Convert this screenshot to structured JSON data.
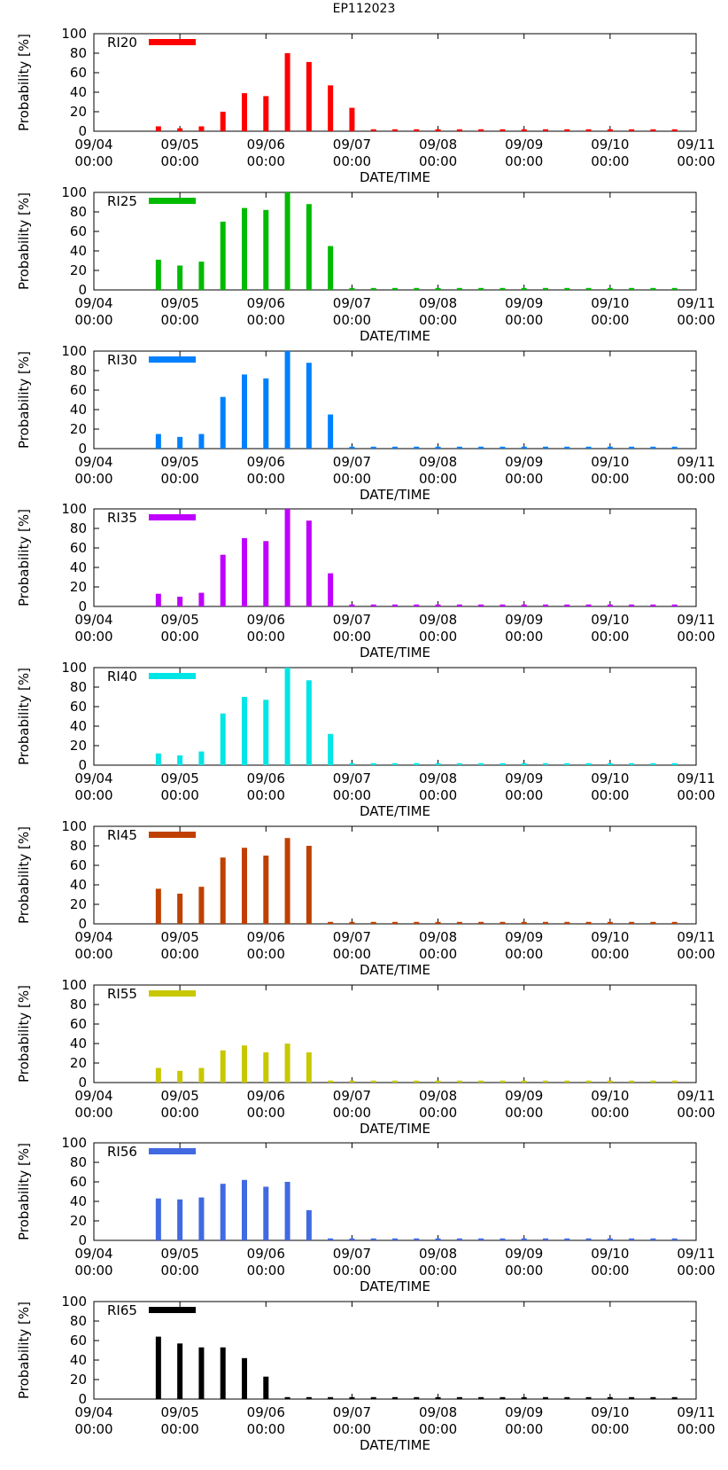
{
  "title": "EP112023",
  "x_tick_labels": [
    [
      "09/04",
      "00:00"
    ],
    [
      "09/05",
      "00:00"
    ],
    [
      "09/06",
      "00:00"
    ],
    [
      "09/07",
      "00:00"
    ],
    [
      "09/08",
      "00:00"
    ],
    [
      "09/09",
      "00:00"
    ],
    [
      "09/10",
      "00:00"
    ],
    [
      "09/11",
      "00:00"
    ]
  ],
  "chart_data": [
    {
      "type": "bar",
      "name": "RI20",
      "color": "#ff0000",
      "ylabel": "Probability [%]",
      "xlabel": "DATE/TIME",
      "ylim": [
        0,
        100
      ],
      "yticks": [
        0,
        20,
        40,
        60,
        80,
        100
      ],
      "x": [
        0.75,
        1.0,
        1.25,
        1.5,
        1.75,
        2.0,
        2.25,
        2.5,
        2.75,
        3.0,
        3.25,
        3.5,
        3.75,
        4.0,
        4.25,
        4.5,
        4.75,
        5.0,
        5.25,
        5.5,
        5.75,
        6.0,
        6.25,
        6.5,
        6.75
      ],
      "values": [
        5,
        3,
        5,
        20,
        39,
        36,
        80,
        71,
        47,
        24,
        2,
        2,
        2,
        2,
        2,
        2,
        2,
        2,
        2,
        2,
        2,
        2,
        2,
        2,
        2
      ]
    },
    {
      "type": "bar",
      "name": "RI25",
      "color": "#00bb00",
      "ylabel": "Probability [%]",
      "xlabel": "DATE/TIME",
      "ylim": [
        0,
        100
      ],
      "yticks": [
        0,
        20,
        40,
        60,
        80,
        100
      ],
      "x": [
        0.75,
        1.0,
        1.25,
        1.5,
        1.75,
        2.0,
        2.25,
        2.5,
        2.75,
        3.0,
        3.25,
        3.5,
        3.75,
        4.0,
        4.25,
        4.5,
        4.75,
        5.0,
        5.25,
        5.5,
        5.75,
        6.0,
        6.25,
        6.5,
        6.75
      ],
      "values": [
        31,
        25,
        29,
        70,
        84,
        82,
        100,
        88,
        45,
        2,
        2,
        2,
        2,
        2,
        2,
        2,
        2,
        2,
        2,
        2,
        2,
        2,
        2,
        2,
        2
      ]
    },
    {
      "type": "bar",
      "name": "RI30",
      "color": "#0080ff",
      "ylabel": "Probability [%]",
      "xlabel": "DATE/TIME",
      "ylim": [
        0,
        100
      ],
      "yticks": [
        0,
        20,
        40,
        60,
        80,
        100
      ],
      "x": [
        0.75,
        1.0,
        1.25,
        1.5,
        1.75,
        2.0,
        2.25,
        2.5,
        2.75,
        3.0,
        3.25,
        3.5,
        3.75,
        4.0,
        4.25,
        4.5,
        4.75,
        5.0,
        5.25,
        5.5,
        5.75,
        6.0,
        6.25,
        6.5,
        6.75
      ],
      "values": [
        15,
        12,
        15,
        53,
        76,
        72,
        100,
        88,
        35,
        2,
        2,
        2,
        2,
        2,
        2,
        2,
        2,
        2,
        2,
        2,
        2,
        2,
        2,
        2,
        2
      ]
    },
    {
      "type": "bar",
      "name": "RI35",
      "color": "#c000ff",
      "ylabel": "Probability [%]",
      "xlabel": "DATE/TIME",
      "ylim": [
        0,
        100
      ],
      "yticks": [
        0,
        20,
        40,
        60,
        80,
        100
      ],
      "x": [
        0.75,
        1.0,
        1.25,
        1.5,
        1.75,
        2.0,
        2.25,
        2.5,
        2.75,
        3.0,
        3.25,
        3.5,
        3.75,
        4.0,
        4.25,
        4.5,
        4.75,
        5.0,
        5.25,
        5.5,
        5.75,
        6.0,
        6.25,
        6.5,
        6.75
      ],
      "values": [
        13,
        10,
        14,
        53,
        70,
        67,
        100,
        88,
        34,
        2,
        2,
        2,
        2,
        2,
        2,
        2,
        2,
        2,
        2,
        2,
        2,
        2,
        2,
        2,
        2
      ]
    },
    {
      "type": "bar",
      "name": "RI40",
      "color": "#00e5e5",
      "ylabel": "Probability [%]",
      "xlabel": "DATE/TIME",
      "ylim": [
        0,
        100
      ],
      "yticks": [
        0,
        20,
        40,
        60,
        80,
        100
      ],
      "x": [
        0.75,
        1.0,
        1.25,
        1.5,
        1.75,
        2.0,
        2.25,
        2.5,
        2.75,
        3.0,
        3.25,
        3.5,
        3.75,
        4.0,
        4.25,
        4.5,
        4.75,
        5.0,
        5.25,
        5.5,
        5.75,
        6.0,
        6.25,
        6.5,
        6.75
      ],
      "values": [
        12,
        10,
        14,
        53,
        70,
        67,
        100,
        87,
        32,
        2,
        2,
        2,
        2,
        2,
        2,
        2,
        2,
        2,
        2,
        2,
        2,
        2,
        2,
        2,
        2
      ]
    },
    {
      "type": "bar",
      "name": "RI45",
      "color": "#c04000",
      "ylabel": "Probability [%]",
      "xlabel": "DATE/TIME",
      "ylim": [
        0,
        100
      ],
      "yticks": [
        0,
        20,
        40,
        60,
        80,
        100
      ],
      "x": [
        0.75,
        1.0,
        1.25,
        1.5,
        1.75,
        2.0,
        2.25,
        2.5,
        2.75,
        3.0,
        3.25,
        3.5,
        3.75,
        4.0,
        4.25,
        4.5,
        4.75,
        5.0,
        5.25,
        5.5,
        5.75,
        6.0,
        6.25,
        6.5,
        6.75
      ],
      "values": [
        36,
        31,
        38,
        68,
        78,
        70,
        88,
        80,
        2,
        2,
        2,
        2,
        2,
        2,
        2,
        2,
        2,
        2,
        2,
        2,
        2,
        2,
        2,
        2,
        2
      ]
    },
    {
      "type": "bar",
      "name": "RI55",
      "color": "#c8c800",
      "ylabel": "Probability [%]",
      "xlabel": "DATE/TIME",
      "ylim": [
        0,
        100
      ],
      "yticks": [
        0,
        20,
        40,
        60,
        80,
        100
      ],
      "x": [
        0.75,
        1.0,
        1.25,
        1.5,
        1.75,
        2.0,
        2.25,
        2.5,
        2.75,
        3.0,
        3.25,
        3.5,
        3.75,
        4.0,
        4.25,
        4.5,
        4.75,
        5.0,
        5.25,
        5.5,
        5.75,
        6.0,
        6.25,
        6.5,
        6.75
      ],
      "values": [
        15,
        12,
        15,
        33,
        38,
        31,
        40,
        31,
        2,
        2,
        2,
        2,
        2,
        2,
        2,
        2,
        2,
        2,
        2,
        2,
        2,
        2,
        2,
        2,
        2
      ]
    },
    {
      "type": "bar",
      "name": "RI56",
      "color": "#4169e1",
      "ylabel": "Probability [%]",
      "xlabel": "DATE/TIME",
      "ylim": [
        0,
        100
      ],
      "yticks": [
        0,
        20,
        40,
        60,
        80,
        100
      ],
      "x": [
        0.75,
        1.0,
        1.25,
        1.5,
        1.75,
        2.0,
        2.25,
        2.5,
        2.75,
        3.0,
        3.25,
        3.5,
        3.75,
        4.0,
        4.25,
        4.5,
        4.75,
        5.0,
        5.25,
        5.5,
        5.75,
        6.0,
        6.25,
        6.5,
        6.75
      ],
      "values": [
        43,
        42,
        44,
        58,
        62,
        55,
        60,
        31,
        2,
        2,
        2,
        2,
        2,
        2,
        2,
        2,
        2,
        2,
        2,
        2,
        2,
        2,
        2,
        2,
        2
      ]
    },
    {
      "type": "bar",
      "name": "RI65",
      "color": "#000000",
      "ylabel": "Probability [%]",
      "xlabel": "DATE/TIME",
      "ylim": [
        0,
        100
      ],
      "yticks": [
        0,
        20,
        40,
        60,
        80,
        100
      ],
      "x": [
        0.75,
        1.0,
        1.25,
        1.5,
        1.75,
        2.0,
        2.25,
        2.5,
        2.75,
        3.0,
        3.25,
        3.5,
        3.75,
        4.0,
        4.25,
        4.5,
        4.75,
        5.0,
        5.25,
        5.5,
        5.75,
        6.0,
        6.25,
        6.5,
        6.75
      ],
      "values": [
        64,
        57,
        53,
        53,
        42,
        23,
        2,
        2,
        2,
        2,
        2,
        2,
        2,
        2,
        2,
        2,
        2,
        2,
        2,
        2,
        2,
        2,
        2,
        2,
        2
      ]
    }
  ]
}
